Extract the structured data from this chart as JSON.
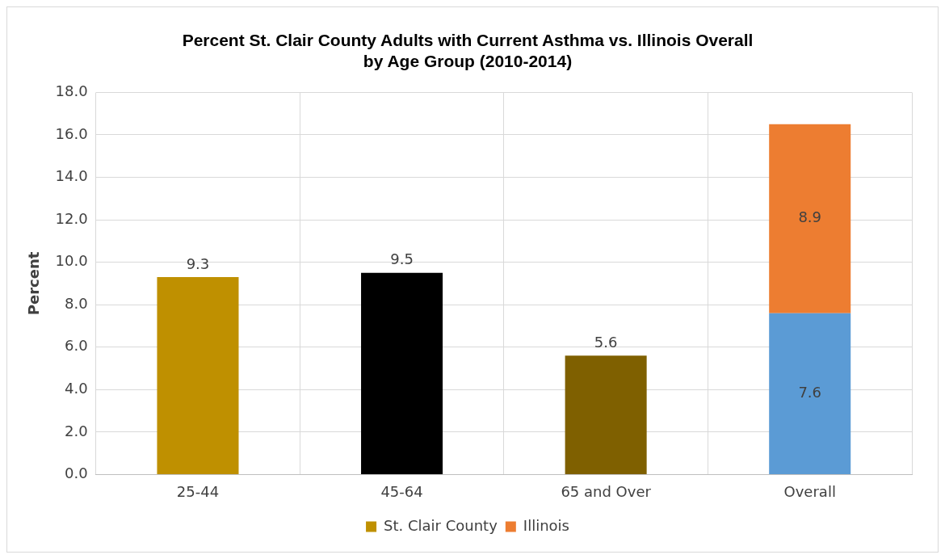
{
  "chart_data": {
    "type": "bar",
    "title": [
      "Percent St. Clair County Adults with Current Asthma vs. Illinois Overall",
      "by Age Group (2010-2014)"
    ],
    "ylabel": "Percent",
    "categories": [
      "25-44",
      "45-64",
      "65 and Over",
      "Overall"
    ],
    "stacked": true,
    "series": [
      {
        "name": "St. Clair County",
        "color": "#bf9000",
        "colors": [
          "#bf9000",
          "#000000",
          "#7f6000",
          "#5b9bd5"
        ],
        "values": [
          9.3,
          9.5,
          5.6,
          7.6
        ]
      },
      {
        "name": "Illinois",
        "color": "#ed7d31",
        "values": [
          null,
          null,
          null,
          8.9
        ]
      }
    ],
    "ylim": [
      0,
      18
    ],
    "yticks": [
      {
        "value": 0,
        "label": "0.0"
      },
      {
        "value": 2,
        "label": "2.0"
      },
      {
        "value": 4,
        "label": "4.0"
      },
      {
        "value": 6,
        "label": "6.0"
      },
      {
        "value": 8,
        "label": "8.0"
      },
      {
        "value": 10,
        "label": "10.0"
      },
      {
        "value": 12,
        "label": "12.0"
      },
      {
        "value": 14,
        "label": "14.0"
      },
      {
        "value": 16,
        "label": "16.0"
      },
      {
        "value": 18,
        "label": "18.0"
      }
    ],
    "grid": true,
    "legend": "bottom",
    "data_labels": true
  }
}
